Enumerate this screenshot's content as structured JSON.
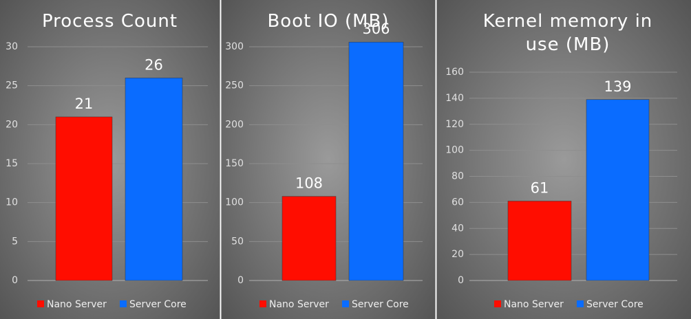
{
  "chart_data": [
    {
      "type": "bar",
      "title": "Process Count",
      "series": [
        {
          "name": "Nano Server",
          "color": "#ff0d00",
          "values": [
            21
          ]
        },
        {
          "name": "Server Core",
          "color": "#0a6cff",
          "values": [
            26
          ]
        }
      ],
      "ylim": [
        0,
        30
      ],
      "yticks": [
        0,
        5,
        10,
        15,
        20,
        25,
        30
      ],
      "grid": true,
      "legend": "bottom"
    },
    {
      "type": "bar",
      "title": "Boot IO (MB)",
      "series": [
        {
          "name": "Nano Server",
          "color": "#ff0d00",
          "values": [
            108
          ]
        },
        {
          "name": "Server Core",
          "color": "#0a6cff",
          "values": [
            306
          ]
        }
      ],
      "ylim": [
        0,
        300
      ],
      "yticks": [
        0,
        50,
        100,
        150,
        200,
        250,
        300
      ],
      "grid": true,
      "legend": "bottom"
    },
    {
      "type": "bar",
      "title": "Kernel memory in use (MB)",
      "series": [
        {
          "name": "Nano Server",
          "color": "#ff0d00",
          "values": [
            61
          ]
        },
        {
          "name": "Server Core",
          "color": "#0a6cff",
          "values": [
            139
          ]
        }
      ],
      "ylim": [
        0,
        160
      ],
      "yticks": [
        0,
        20,
        40,
        60,
        80,
        100,
        120,
        140,
        160
      ],
      "grid": true,
      "legend": "bottom"
    }
  ]
}
